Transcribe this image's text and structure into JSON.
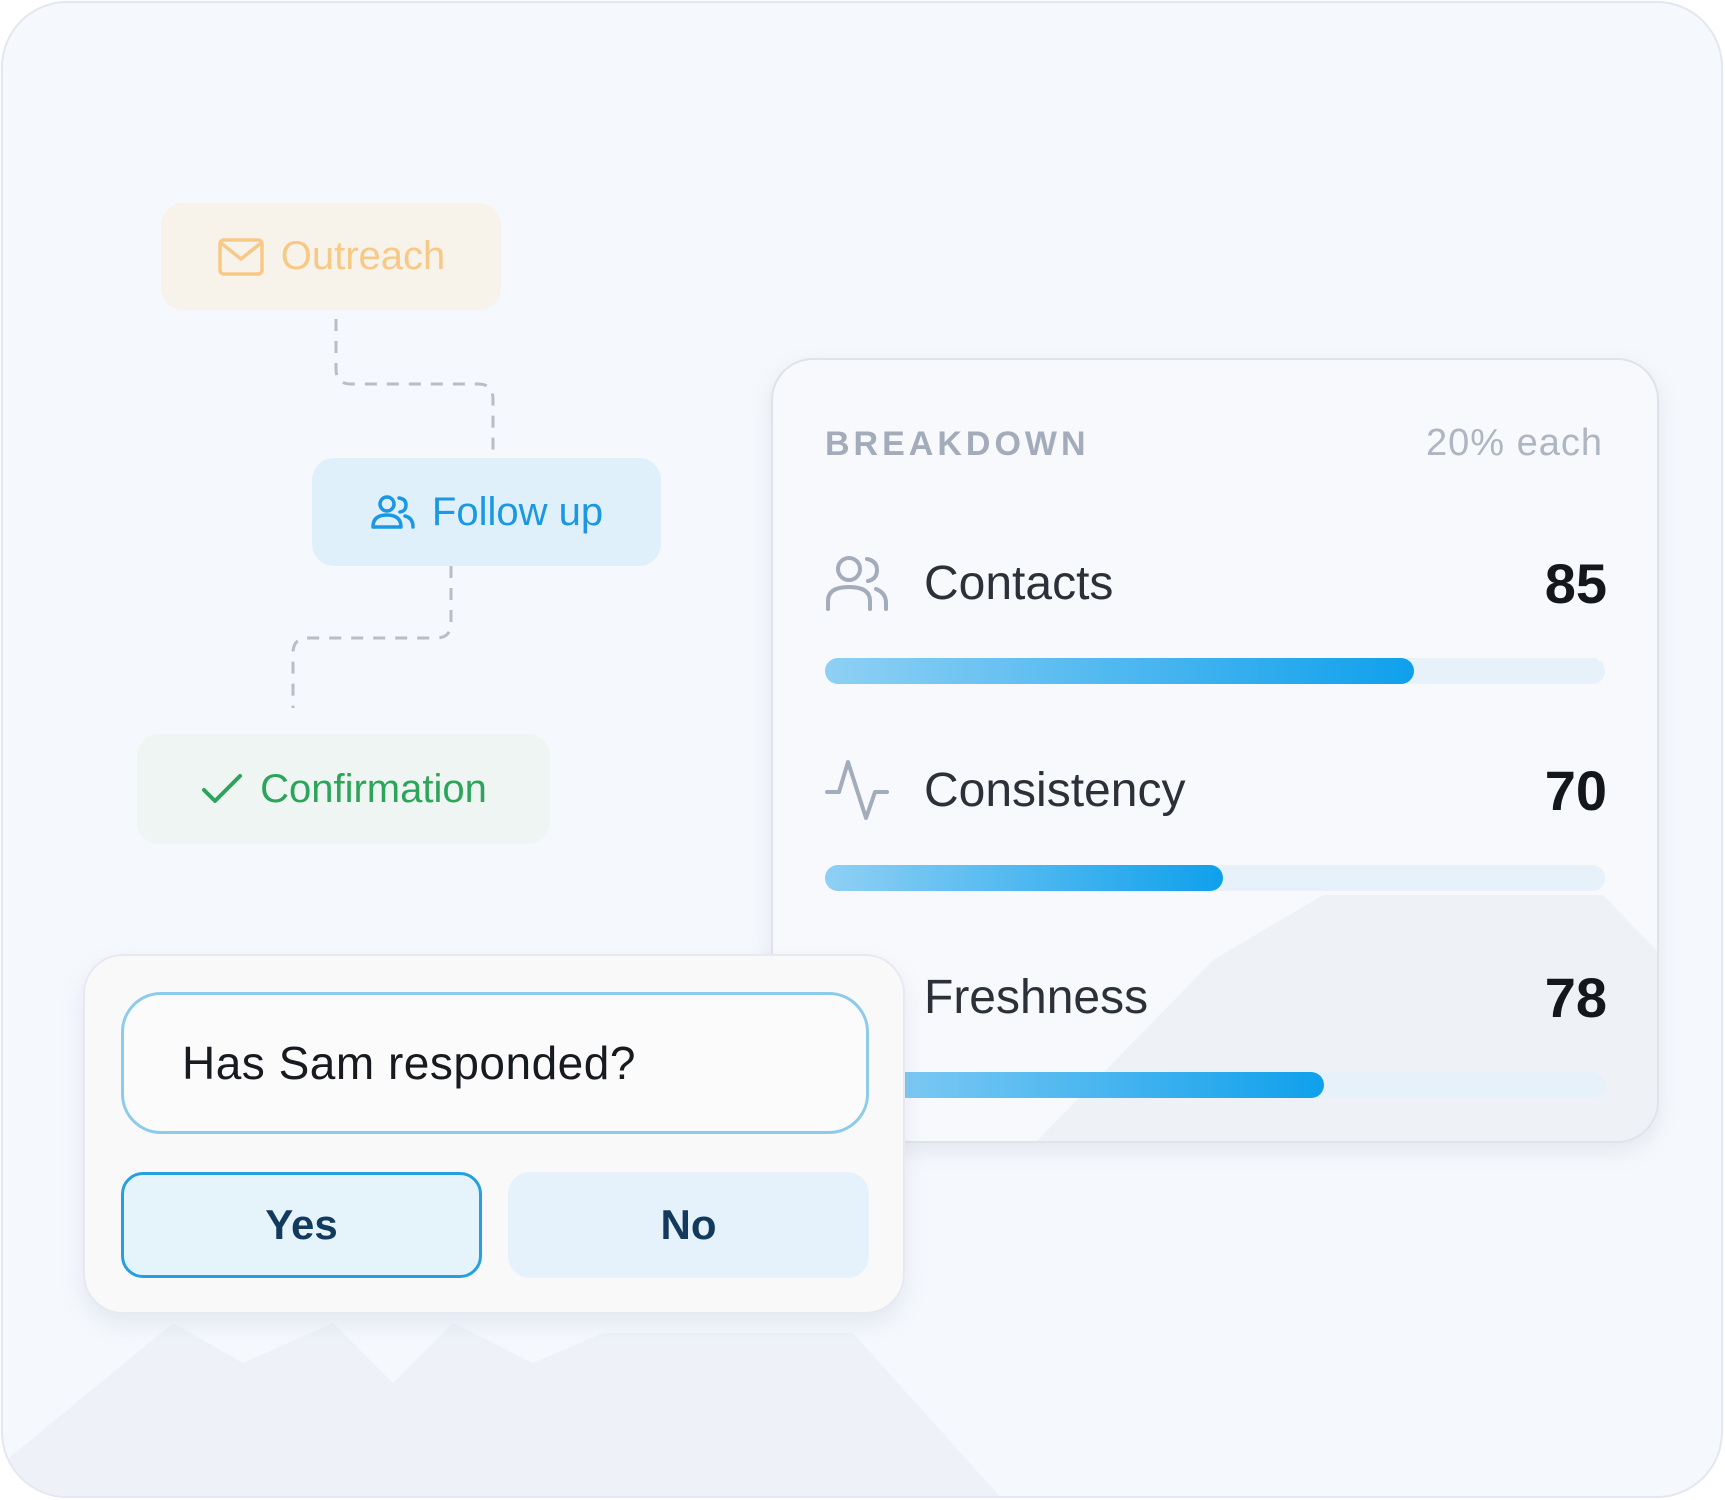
{
  "flow": {
    "nodes": [
      {
        "label": "Outreach",
        "icon": "mail-icon",
        "color": "#f7c987"
      },
      {
        "label": "Follow up",
        "icon": "users-icon",
        "color": "#1a98e3"
      },
      {
        "label": "Confirmation",
        "icon": "check-icon",
        "color": "#2ca55b"
      }
    ]
  },
  "breakdown": {
    "title": "BREAKDOWN",
    "subtitle": "20% each",
    "metrics": [
      {
        "label": "Contacts",
        "value": "85",
        "icon": "contacts-icon",
        "fill": 0.755
      },
      {
        "label": "Consistency",
        "value": "70",
        "icon": "activity-icon",
        "fill": 0.51
      },
      {
        "label": "Freshness",
        "value": "78",
        "icon": "freshness-icon",
        "fill": 0.64
      }
    ],
    "bar_gradient": [
      "#8fd0f4",
      "#0fa0ec"
    ]
  },
  "question": {
    "text": "Has Sam responded?",
    "options": [
      "Yes",
      "No"
    ],
    "selected": "Yes"
  }
}
